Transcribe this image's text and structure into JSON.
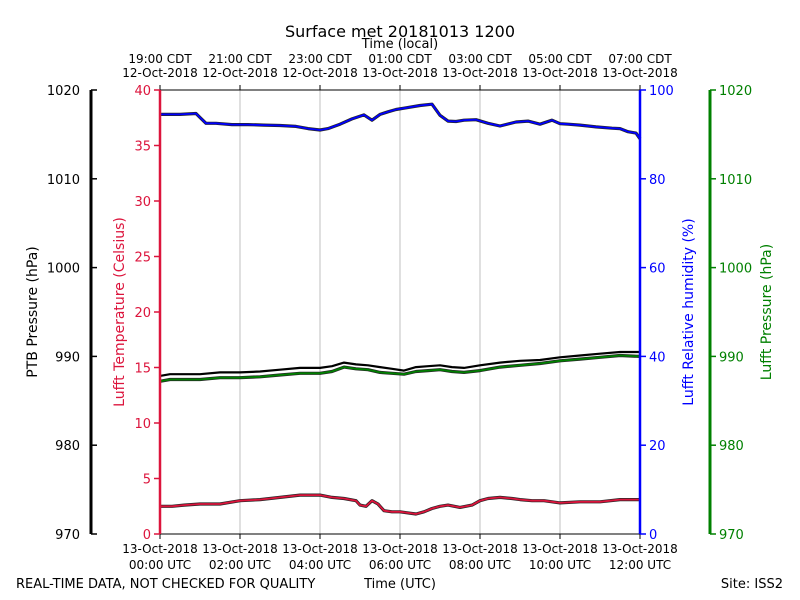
{
  "chart_data": {
    "type": "line",
    "title": "Surface met 20181013 1200",
    "top_axis_label": "Time (local)",
    "xlabel": "Time (UTC)",
    "footer_left": "REAL-TIME DATA, NOT CHECKED FOR QUALITY",
    "footer_right": "Site: ISS2",
    "x_range_hours_utc": [
      0,
      12
    ],
    "bottom_ticks": [
      {
        "hour": 0,
        "line1": "13-Oct-2018",
        "line2": "00:00 UTC"
      },
      {
        "hour": 2,
        "line1": "13-Oct-2018",
        "line2": "02:00 UTC"
      },
      {
        "hour": 4,
        "line1": "13-Oct-2018",
        "line2": "04:00 UTC"
      },
      {
        "hour": 6,
        "line1": "13-Oct-2018",
        "line2": "06:00 UTC"
      },
      {
        "hour": 8,
        "line1": "13-Oct-2018",
        "line2": "08:00 UTC"
      },
      {
        "hour": 10,
        "line1": "13-Oct-2018",
        "line2": "10:00 UTC"
      },
      {
        "hour": 12,
        "line1": "13-Oct-2018",
        "line2": "12:00 UTC"
      }
    ],
    "top_ticks": [
      {
        "hour": 0,
        "line1": "19:00 CDT",
        "line2": "12-Oct-2018"
      },
      {
        "hour": 2,
        "line1": "21:00 CDT",
        "line2": "12-Oct-2018"
      },
      {
        "hour": 4,
        "line1": "23:00 CDT",
        "line2": "12-Oct-2018"
      },
      {
        "hour": 6,
        "line1": "01:00 CDT",
        "line2": "13-Oct-2018"
      },
      {
        "hour": 8,
        "line1": "03:00 CDT",
        "line2": "13-Oct-2018"
      },
      {
        "hour": 10,
        "line1": "05:00 CDT",
        "line2": "13-Oct-2018"
      },
      {
        "hour": 12,
        "line1": "07:00 CDT",
        "line2": "13-Oct-2018"
      }
    ],
    "axes": {
      "ptb_pressure": {
        "label": "PTB Pressure (hPa)",
        "range": [
          970,
          1020
        ],
        "ticks": [
          970,
          980,
          990,
          1000,
          1010,
          1020
        ],
        "color": "#000000"
      },
      "temperature": {
        "label": "Lufft Temperature (Celsius)",
        "range": [
          0,
          40
        ],
        "ticks": [
          0,
          5,
          10,
          15,
          20,
          25,
          30,
          35,
          40
        ],
        "color": "#dc143c"
      },
      "humidity": {
        "label": "Lufft Relative humidity (%)",
        "range": [
          0,
          100
        ],
        "ticks": [
          0,
          20,
          40,
          60,
          80,
          100
        ],
        "color": "#0000ff"
      },
      "lufft_pressure": {
        "label": "Lufft Pressure (hPa)",
        "range": [
          970,
          1020
        ],
        "ticks": [
          970,
          980,
          990,
          1000,
          1010,
          1020
        ],
        "color": "#008000"
      }
    },
    "grid": "vertical at 2-hour ticks",
    "series": [
      {
        "name": "Lufft Relative humidity",
        "axis": "humidity",
        "color": "#0000ff",
        "x": [
          0,
          0.5,
          0.9,
          1.0,
          1.15,
          1.4,
          1.8,
          2.2,
          2.6,
          3.0,
          3.4,
          3.7,
          4.0,
          4.2,
          4.5,
          4.8,
          5.1,
          5.3,
          5.5,
          5.7,
          5.9,
          6.1,
          6.5,
          6.8,
          7.0,
          7.2,
          7.4,
          7.6,
          7.9,
          8.2,
          8.5,
          8.9,
          9.2,
          9.5,
          9.8,
          10.0,
          10.2,
          10.5,
          10.9,
          11.3,
          11.5,
          11.7,
          11.9,
          12.0
        ],
        "values": [
          94.5,
          94.5,
          94.7,
          93.8,
          92.5,
          92.5,
          92.2,
          92.2,
          92.1,
          92.0,
          91.8,
          91.3,
          91.0,
          91.3,
          92.3,
          93.5,
          94.4,
          93.2,
          94.5,
          95.1,
          95.6,
          95.9,
          96.5,
          96.8,
          94.3,
          93.0,
          92.9,
          93.2,
          93.3,
          92.5,
          91.9,
          92.8,
          93.0,
          92.3,
          93.2,
          92.4,
          92.3,
          92.1,
          91.7,
          91.4,
          91.3,
          90.6,
          90.3,
          89.0
        ]
      },
      {
        "name": "PTB Pressure",
        "axis": "ptb_pressure",
        "color": "#000000",
        "x": [
          0,
          0.25,
          1.0,
          1.5,
          2.0,
          2.5,
          3.0,
          3.5,
          4.0,
          4.3,
          4.6,
          4.9,
          5.2,
          5.5,
          5.8,
          6.1,
          6.4,
          6.7,
          7.0,
          7.3,
          7.6,
          8.0,
          8.5,
          9.0,
          9.5,
          10.0,
          10.5,
          11.0,
          11.5,
          12.0
        ],
        "values": [
          987.8,
          988.0,
          988.0,
          988.2,
          988.2,
          988.3,
          988.5,
          988.7,
          988.7,
          988.9,
          989.3,
          989.1,
          989.0,
          988.8,
          988.6,
          988.4,
          988.8,
          988.9,
          989.0,
          988.8,
          988.7,
          989.0,
          989.3,
          989.5,
          989.6,
          989.9,
          990.1,
          990.3,
          990.5,
          990.5
        ]
      },
      {
        "name": "Lufft Pressure",
        "axis": "lufft_pressure",
        "color": "#008000",
        "x": [
          0,
          0.25,
          1.0,
          1.5,
          2.0,
          2.5,
          3.0,
          3.5,
          4.0,
          4.3,
          4.6,
          4.9,
          5.2,
          5.5,
          5.8,
          6.1,
          6.4,
          6.7,
          7.0,
          7.3,
          7.6,
          8.0,
          8.5,
          9.0,
          9.5,
          10.0,
          10.5,
          11.0,
          11.5,
          12.0
        ],
        "values": [
          987.2,
          987.4,
          987.4,
          987.6,
          987.6,
          987.7,
          987.9,
          988.1,
          988.1,
          988.3,
          988.8,
          988.6,
          988.5,
          988.2,
          988.1,
          988.0,
          988.3,
          988.4,
          988.5,
          988.3,
          988.2,
          988.4,
          988.8,
          989.0,
          989.2,
          989.5,
          989.7,
          989.9,
          990.1,
          990.0
        ]
      },
      {
        "name": "Lufft Temperature",
        "axis": "temperature",
        "color": "#dc143c",
        "x": [
          0,
          0.3,
          0.6,
          1.0,
          1.5,
          2.0,
          2.5,
          3.0,
          3.5,
          4.0,
          4.3,
          4.6,
          4.9,
          5.0,
          5.15,
          5.3,
          5.45,
          5.6,
          5.8,
          6.0,
          6.2,
          6.4,
          6.6,
          6.8,
          7.0,
          7.2,
          7.5,
          7.8,
          8.0,
          8.2,
          8.5,
          8.8,
          9.0,
          9.3,
          9.6,
          10.0,
          10.5,
          11.0,
          11.5,
          12.0
        ],
        "values": [
          2.5,
          2.5,
          2.6,
          2.7,
          2.7,
          3.0,
          3.1,
          3.3,
          3.5,
          3.5,
          3.3,
          3.2,
          3.0,
          2.6,
          2.5,
          3.0,
          2.7,
          2.1,
          2.0,
          2.0,
          1.9,
          1.8,
          2.0,
          2.3,
          2.5,
          2.6,
          2.4,
          2.6,
          3.0,
          3.2,
          3.3,
          3.2,
          3.1,
          3.0,
          3.0,
          2.8,
          2.9,
          2.9,
          3.1,
          3.1
        ]
      }
    ]
  }
}
